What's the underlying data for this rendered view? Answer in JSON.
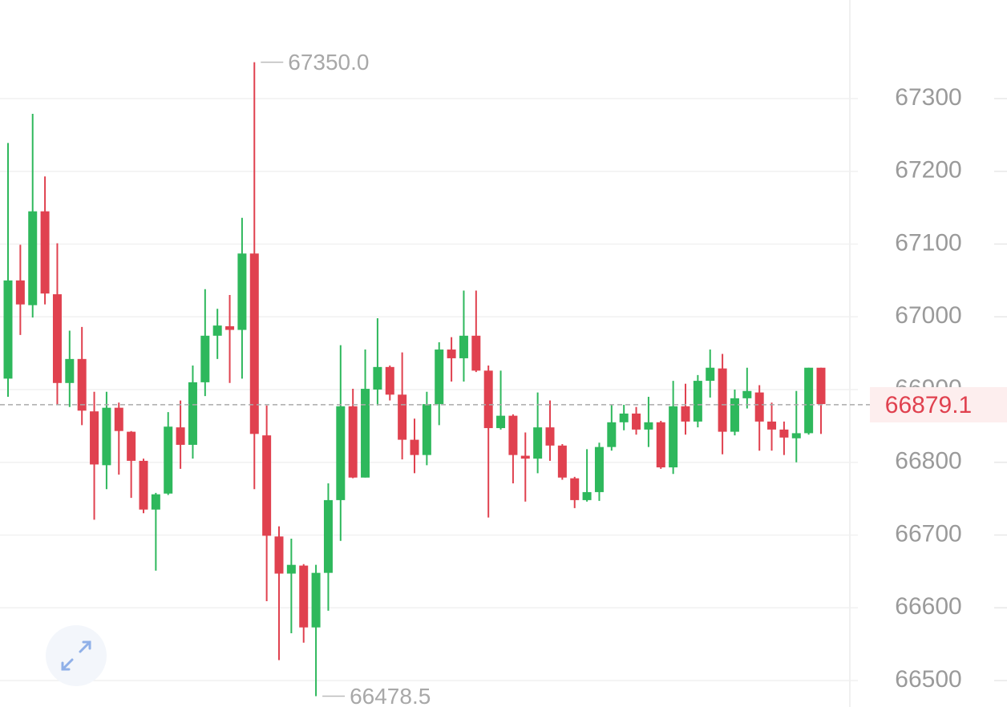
{
  "chart_data": {
    "type": "candlestick",
    "up_color": "#2eb85c",
    "down_color": "#e0414f",
    "ylim": [
      66463.6,
      67435.5
    ],
    "yticks": [
      66500,
      66600,
      66700,
      66800,
      66900,
      67000,
      67100,
      67200,
      67300
    ],
    "grid": true,
    "open": [
      66915,
      67050,
      67016,
      67145,
      67031,
      66909,
      66942,
      66870,
      66796,
      66875,
      66842,
      66802,
      66735,
      66757,
      66848,
      66824,
      66910,
      66974,
      66987,
      66982,
      67087,
      66837,
      66698,
      66647,
      66658,
      66573,
      66648,
      66748,
      66877,
      66779,
      66900,
      66931,
      66893,
      66831,
      66810,
      66880,
      66955,
      66943,
      66974,
      66926,
      66847,
      66864,
      66809,
      66805,
      66848,
      66823,
      66778,
      66748,
      66759,
      66821,
      66855,
      66867,
      66845,
      66855,
      66793,
      66877,
      66856,
      66912,
      66929,
      66842,
      66888,
      66896,
      66856,
      66845,
      66833,
      66840,
      66930
    ],
    "high": [
      67239,
      67099,
      67279,
      67193,
      67101,
      66981,
      66986,
      66897,
      66897,
      66882,
      66843,
      66805,
      66758,
      66869,
      66885,
      66933,
      67038,
      67011,
      67030,
      67136,
      67350,
      66878,
      66712,
      66695,
      66660,
      66659,
      66771,
      66961,
      66901,
      66955,
      66998,
      66933,
      66951,
      66860,
      66897,
      66965,
      66972,
      67036,
      67036,
      66933,
      66926,
      66866,
      66841,
      66896,
      66885,
      66825,
      66780,
      66818,
      66827,
      66879,
      66879,
      66876,
      66890,
      66857,
      66912,
      66908,
      66920,
      66955,
      66949,
      66900,
      66930,
      66906,
      66882,
      66856,
      66898,
      66930,
      66930
    ],
    "low": [
      66890,
      66975,
      66999,
      67017,
      66879,
      66876,
      66851,
      66721,
      66763,
      66783,
      66751,
      66730,
      66651,
      66755,
      66791,
      66805,
      66891,
      66942,
      66909,
      66915,
      66763,
      66609,
      66528,
      66565,
      66552,
      66478.5,
      66596,
      66692,
      66778,
      66779,
      66878,
      66885,
      66804,
      66785,
      66796,
      66851,
      66911,
      66911,
      66924,
      66724,
      66845,
      66771,
      66746,
      66785,
      66802,
      66776,
      66737,
      66746,
      66747,
      66816,
      66844,
      66838,
      66821,
      66791,
      66784,
      66838,
      66848,
      66889,
      66811,
      66837,
      66874,
      66816,
      66816,
      66810,
      66800,
      66838,
      66839
    ],
    "close": [
      67050,
      67017,
      67145,
      67032,
      66909,
      66942,
      66871,
      66797,
      66875,
      66843,
      66802,
      66735,
      66756,
      66849,
      66824,
      66910,
      66974,
      66988,
      66982,
      67087,
      66839,
      66699,
      66647,
      66659,
      66573,
      66648,
      66748,
      66877,
      66779,
      66901,
      66931,
      66893,
      66831,
      66810,
      66880,
      66955,
      66943,
      66974,
      66926,
      66847,
      66864,
      66810,
      66805,
      66848,
      66823,
      66779,
      66748,
      66759,
      66821,
      66855,
      66867,
      66845,
      66855,
      66793,
      66877,
      66856,
      66912,
      66930,
      66842,
      66888,
      66898,
      66856,
      66845,
      66834,
      66840,
      66930,
      66880
    ],
    "max_label": {
      "value": 67350,
      "label": "67350.0"
    },
    "min_label": 66478.5,
    "last_price": 66879.1
  }
}
